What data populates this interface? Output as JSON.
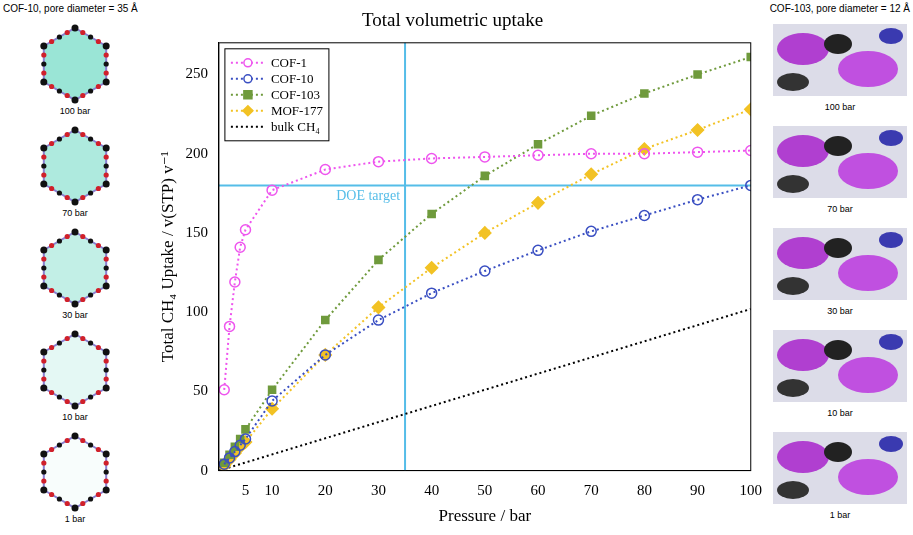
{
  "left_panel": {
    "title": "COF-10, pore diameter = 35 Å",
    "labels": [
      "100 bar",
      "70 bar",
      "30 bar",
      "10 bar",
      "1 bar"
    ]
  },
  "right_panel": {
    "title": "COF-103, pore diameter = 12 Å",
    "labels": [
      "100 bar",
      "70 bar",
      "30 bar",
      "10 bar",
      "1 bar"
    ]
  },
  "chart_data": {
    "type": "line",
    "title": "Total volumetric uptake",
    "x_label": "Pressure / bar",
    "y_label": "Total CH₄ Uptake / v(STP) v⁻¹",
    "xlim": [
      0,
      100
    ],
    "xticks": [
      5,
      10,
      20,
      30,
      40,
      50,
      60,
      70,
      80,
      90,
      100
    ],
    "ylim": [
      0,
      270
    ],
    "yticks": [
      0,
      50,
      100,
      150,
      200,
      250
    ],
    "grid": false,
    "legend": "upper left",
    "reference_lines": {
      "x": 35,
      "y": 180,
      "label": "DOE target",
      "color": "#55bde8"
    },
    "series": [
      {
        "name": "COF-1",
        "color": "#ee55ee",
        "marker": "open_circle",
        "line_style": "dotted",
        "x": [
          1,
          2,
          3,
          4,
          5,
          10,
          20,
          30,
          40,
          50,
          60,
          70,
          80,
          90,
          100
        ],
        "values": [
          51,
          91,
          119,
          141,
          152,
          177,
          190,
          195,
          197,
          198,
          199,
          200,
          200,
          201,
          202
        ]
      },
      {
        "name": "COF-10",
        "color": "#3a4fc2",
        "marker": "open_circle",
        "line_style": "dotted",
        "x": [
          1,
          2,
          3,
          4,
          5,
          10,
          20,
          30,
          40,
          50,
          60,
          70,
          80,
          90,
          100
        ],
        "values": [
          4,
          8,
          12,
          16,
          20,
          44,
          73,
          95,
          112,
          126,
          139,
          151,
          161,
          171,
          180
        ]
      },
      {
        "name": "COF-103",
        "color": "#6f9a3c",
        "marker": "square",
        "line_style": "dotted",
        "x": [
          1,
          2,
          3,
          4,
          5,
          10,
          20,
          30,
          40,
          50,
          60,
          70,
          80,
          90,
          100
        ],
        "values": [
          5,
          10,
          15,
          20,
          26,
          51,
          95,
          133,
          162,
          186,
          206,
          224,
          238,
          250,
          261
        ]
      },
      {
        "name": "MOF-177",
        "color": "#f2c224",
        "marker": "diamond",
        "line_style": "dotted",
        "x": [
          1,
          2,
          3,
          4,
          5,
          10,
          20,
          30,
          40,
          50,
          60,
          70,
          80,
          90,
          100
        ],
        "values": [
          3,
          7,
          11,
          15,
          18,
          39,
          73,
          103,
          128,
          150,
          169,
          187,
          203,
          215,
          228
        ]
      },
      {
        "name": "bulk CH₄",
        "color": "#000000",
        "marker": "none",
        "line_style": "dotted",
        "x": [
          0,
          100
        ],
        "values": [
          0,
          102
        ]
      }
    ]
  }
}
